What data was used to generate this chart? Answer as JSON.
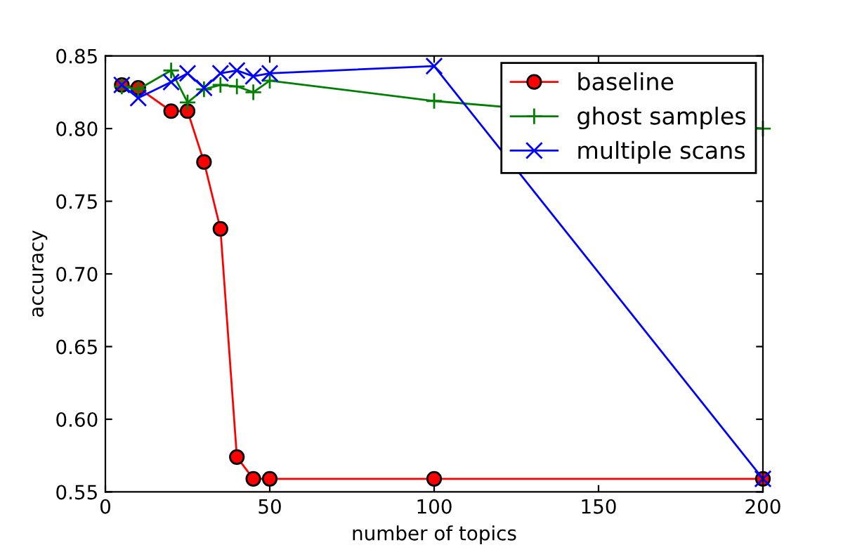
{
  "chart_data": {
    "type": "line",
    "xlabel": "number of topics",
    "ylabel": "accuracy",
    "x": [
      5,
      10,
      20,
      25,
      30,
      35,
      40,
      45,
      50,
      100,
      200
    ],
    "series": [
      {
        "name": "baseline",
        "color": "#ff0000",
        "marker": "circle",
        "values": [
          0.83,
          0.828,
          0.812,
          0.812,
          0.777,
          0.731,
          0.574,
          0.559,
          0.559,
          0.559,
          0.559
        ]
      },
      {
        "name": "ghost samples",
        "color": "#008000",
        "marker": "plus",
        "values": [
          0.829,
          0.827,
          0.84,
          0.818,
          0.827,
          0.83,
          0.829,
          0.825,
          0.833,
          0.819,
          0.8
        ]
      },
      {
        "name": "multiple scans",
        "color": "#0000ff",
        "marker": "cross",
        "values": [
          0.83,
          0.821,
          0.832,
          0.838,
          0.828,
          0.838,
          0.84,
          0.836,
          0.838,
          0.843,
          0.559
        ]
      }
    ],
    "xlim": [
      0,
      200
    ],
    "xticks": [
      0,
      50,
      100,
      150,
      200
    ],
    "ylim": [
      0.55,
      0.85
    ],
    "yticks": [
      {
        "value": 0.55,
        "label": "0.55"
      },
      {
        "value": 0.6,
        "label": "0.60"
      },
      {
        "value": 0.65,
        "label": "0.65"
      },
      {
        "value": 0.7,
        "label": "0.70"
      },
      {
        "value": 0.75,
        "label": "0.75"
      },
      {
        "value": 0.8,
        "label": "0.80"
      },
      {
        "value": 0.85,
        "label": "0.85"
      }
    ],
    "legend": "top right",
    "grid": false,
    "line_style": "solid"
  }
}
